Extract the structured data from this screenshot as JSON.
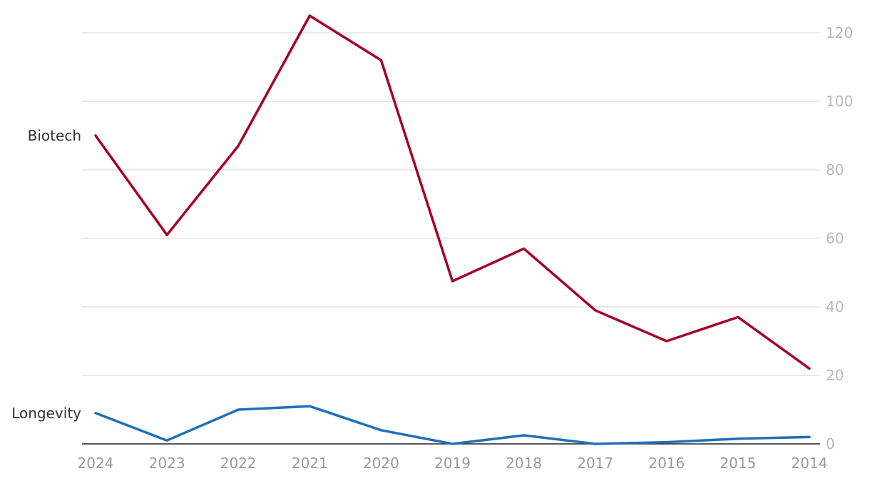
{
  "chart_data": {
    "type": "line",
    "x": [
      "2024",
      "2023",
      "2022",
      "2021",
      "2020",
      "2019",
      "2018",
      "2017",
      "2016",
      "2015",
      "2014"
    ],
    "y_ticks": [
      "0",
      "20",
      "40",
      "60",
      "80",
      "100",
      "120"
    ],
    "ylim": [
      0,
      125
    ],
    "y_axis_side": "right",
    "grid": true,
    "series": [
      {
        "name": "Biotech",
        "color": "#a50026",
        "values": [
          90,
          61,
          87,
          125,
          112,
          47.5,
          57,
          39,
          30,
          37,
          22
        ]
      },
      {
        "name": "Longevity",
        "color": "#2070b4",
        "values": [
          9,
          1,
          10,
          11,
          4,
          0,
          2.5,
          0,
          0.5,
          1.5,
          2
        ]
      }
    ]
  }
}
